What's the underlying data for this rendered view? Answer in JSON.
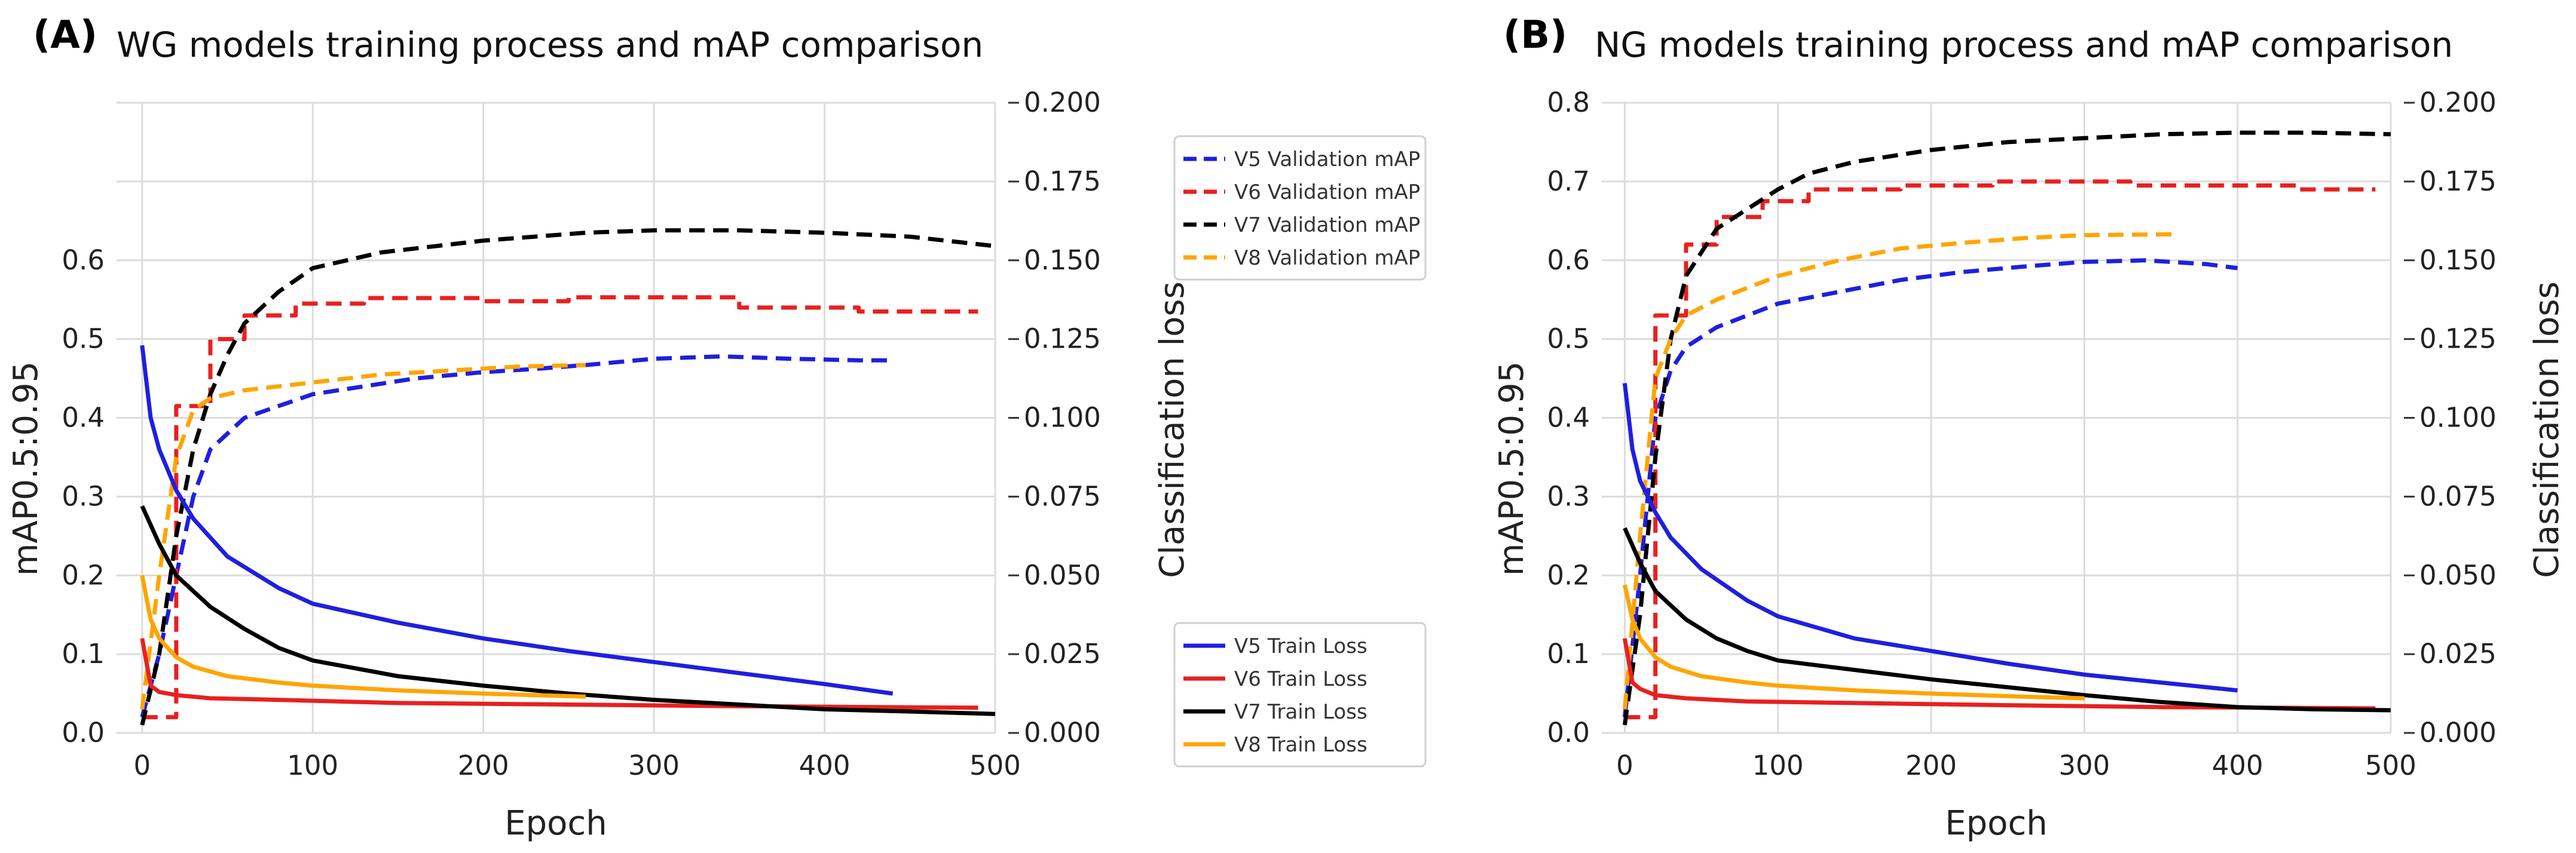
{
  "chart_data": [
    {
      "panel_label": "(A)",
      "type": "line",
      "title": "WG models training process and mAP comparison",
      "xlabel": "Epoch",
      "ylabel": "mAP0.5:0.95",
      "y2label": "Classification loss",
      "xlim": [
        -15,
        500
      ],
      "ylim": [
        0,
        0.8
      ],
      "y2lim": [
        0,
        0.2
      ],
      "grid": true,
      "xticks": [
        0,
        100,
        200,
        300,
        400,
        500
      ],
      "xtick_labels": [
        "0",
        "100",
        "200",
        "300",
        "400",
        "500"
      ],
      "yticks": [
        0,
        0.1,
        0.2,
        0.3,
        0.4,
        0.5,
        0.6
      ],
      "ytick_labels": [
        "0.0",
        "0.1",
        "0.2",
        "0.3",
        "0.4",
        "0.5",
        "0.6"
      ],
      "y2ticks": [
        0,
        0.025,
        0.05,
        0.075,
        0.1,
        0.125,
        0.15,
        0.175,
        0.2
      ],
      "y2tick_labels": [
        "0.000",
        "0.025",
        "0.050",
        "0.075",
        "0.100",
        "0.125",
        "0.150",
        "0.175",
        "0.200"
      ],
      "legend_val_position": "upper-right-outside",
      "legend_loss_position": "lower-right-outside",
      "series": [
        {
          "name": "V5 Validation mAP",
          "axis": "left",
          "style": "dashed",
          "color": "#1f1fe0",
          "x": [
            0,
            10,
            20,
            30,
            40,
            60,
            80,
            100,
            130,
            160,
            200,
            230,
            260,
            300,
            340,
            380,
            420,
            440
          ],
          "y": [
            0.02,
            0.1,
            0.2,
            0.3,
            0.36,
            0.4,
            0.415,
            0.43,
            0.44,
            0.45,
            0.458,
            0.462,
            0.467,
            0.475,
            0.478,
            0.475,
            0.473,
            0.473
          ]
        },
        {
          "name": "V6 Validation mAP",
          "axis": "left",
          "style": "step",
          "color": "#e82020",
          "x": [
            0,
            20,
            20,
            40,
            40,
            60,
            60,
            90,
            90,
            130,
            130,
            200,
            200,
            250,
            250,
            350,
            350,
            420,
            420,
            490
          ],
          "y": [
            0.02,
            0.02,
            0.415,
            0.415,
            0.5,
            0.5,
            0.53,
            0.53,
            0.545,
            0.545,
            0.552,
            0.552,
            0.548,
            0.548,
            0.553,
            0.553,
            0.54,
            0.54,
            0.535,
            0.535
          ]
        },
        {
          "name": "V7 Validation mAP",
          "axis": "left",
          "style": "dashed",
          "color": "#000000",
          "x": [
            0,
            10,
            20,
            30,
            40,
            50,
            60,
            80,
            100,
            140,
            200,
            260,
            300,
            350,
            400,
            450,
            500
          ],
          "y": [
            0.01,
            0.1,
            0.25,
            0.36,
            0.43,
            0.48,
            0.52,
            0.56,
            0.59,
            0.61,
            0.625,
            0.635,
            0.638,
            0.638,
            0.635,
            0.63,
            0.618
          ]
        },
        {
          "name": "V8 Validation mAP",
          "axis": "left",
          "style": "dashed",
          "color": "#ffa500",
          "x": [
            0,
            10,
            20,
            30,
            40,
            60,
            80,
            100,
            140,
            180,
            220,
            260
          ],
          "y": [
            0.03,
            0.2,
            0.35,
            0.41,
            0.425,
            0.435,
            0.44,
            0.445,
            0.455,
            0.46,
            0.465,
            0.467
          ]
        },
        {
          "name": "V5 Train Loss",
          "axis": "right",
          "style": "solid",
          "color": "#1f1fe0",
          "x": [
            0,
            5,
            10,
            20,
            30,
            50,
            80,
            100,
            150,
            200,
            250,
            300,
            350,
            400,
            440
          ],
          "y": [
            0.123,
            0.1,
            0.09,
            0.077,
            0.068,
            0.056,
            0.046,
            0.041,
            0.035,
            0.03,
            0.026,
            0.0225,
            0.019,
            0.0155,
            0.0125
          ]
        },
        {
          "name": "V6 Train Loss",
          "axis": "right",
          "style": "solid",
          "color": "#e82020",
          "x": [
            0,
            5,
            10,
            20,
            40,
            80,
            150,
            250,
            350,
            490
          ],
          "y": [
            0.03,
            0.015,
            0.013,
            0.012,
            0.011,
            0.0105,
            0.0095,
            0.009,
            0.0085,
            0.008
          ]
        },
        {
          "name": "V7 Train Loss",
          "axis": "right",
          "style": "solid",
          "color": "#000000",
          "x": [
            0,
            10,
            20,
            40,
            60,
            80,
            100,
            150,
            200,
            250,
            300,
            350,
            400,
            450,
            500
          ],
          "y": [
            0.072,
            0.06,
            0.05,
            0.04,
            0.033,
            0.027,
            0.023,
            0.018,
            0.015,
            0.0125,
            0.0105,
            0.009,
            0.0075,
            0.0068,
            0.006
          ]
        },
        {
          "name": "V8 Train Loss",
          "axis": "right",
          "style": "solid",
          "color": "#ffa500",
          "x": [
            0,
            5,
            10,
            20,
            30,
            50,
            80,
            100,
            150,
            200,
            260
          ],
          "y": [
            0.05,
            0.036,
            0.03,
            0.024,
            0.021,
            0.018,
            0.016,
            0.015,
            0.0135,
            0.0125,
            0.0115
          ]
        }
      ]
    },
    {
      "panel_label": "(B)",
      "type": "line",
      "title": "NG models training process and mAP comparison",
      "xlabel": "Epoch",
      "ylabel": "mAP0.5:0.95",
      "y2label": "Classification loss",
      "xlim": [
        -15,
        500
      ],
      "ylim": [
        0,
        0.8
      ],
      "y2lim": [
        0,
        0.2
      ],
      "grid": true,
      "xticks": [
        0,
        100,
        200,
        300,
        400,
        500
      ],
      "xtick_labels": [
        "0",
        "100",
        "200",
        "300",
        "400",
        "500"
      ],
      "yticks": [
        0,
        0.1,
        0.2,
        0.3,
        0.4,
        0.5,
        0.6,
        0.7,
        0.8
      ],
      "ytick_labels": [
        "0.0",
        "0.1",
        "0.2",
        "0.3",
        "0.4",
        "0.5",
        "0.6",
        "0.7",
        "0.8"
      ],
      "y2ticks": [
        0,
        0.025,
        0.05,
        0.075,
        0.1,
        0.125,
        0.15,
        0.175,
        0.2
      ],
      "y2tick_labels": [
        "0.000",
        "0.025",
        "0.050",
        "0.075",
        "0.100",
        "0.125",
        "0.150",
        "0.175",
        "0.200"
      ],
      "series": [
        {
          "name": "V5 Validation mAP",
          "axis": "left",
          "style": "dashed",
          "color": "#1f1fe0",
          "x": [
            0,
            10,
            20,
            30,
            40,
            60,
            80,
            100,
            140,
            180,
            220,
            260,
            300,
            340,
            380,
            400
          ],
          "y": [
            0.02,
            0.2,
            0.4,
            0.46,
            0.49,
            0.515,
            0.53,
            0.545,
            0.56,
            0.575,
            0.585,
            0.592,
            0.598,
            0.6,
            0.595,
            0.59
          ]
        },
        {
          "name": "V6 Validation mAP",
          "axis": "left",
          "style": "step",
          "color": "#e82020",
          "x": [
            0,
            20,
            20,
            40,
            40,
            60,
            60,
            90,
            90,
            120,
            120,
            180,
            180,
            240,
            240,
            330,
            330,
            440,
            440,
            490
          ],
          "y": [
            0.02,
            0.02,
            0.53,
            0.53,
            0.62,
            0.62,
            0.655,
            0.655,
            0.675,
            0.675,
            0.69,
            0.69,
            0.695,
            0.695,
            0.7,
            0.7,
            0.695,
            0.695,
            0.69,
            0.69
          ]
        },
        {
          "name": "V7 Validation mAP",
          "axis": "left",
          "style": "dashed",
          "color": "#000000",
          "x": [
            0,
            10,
            20,
            30,
            40,
            60,
            80,
            100,
            120,
            150,
            200,
            250,
            300,
            350,
            400,
            450,
            500
          ],
          "y": [
            0.01,
            0.15,
            0.35,
            0.5,
            0.58,
            0.64,
            0.665,
            0.69,
            0.71,
            0.725,
            0.74,
            0.75,
            0.755,
            0.76,
            0.762,
            0.762,
            0.76
          ]
        },
        {
          "name": "V8 Validation mAP",
          "axis": "left",
          "style": "dashed",
          "color": "#ffa500",
          "x": [
            0,
            10,
            20,
            30,
            40,
            60,
            80,
            100,
            140,
            180,
            220,
            260,
            300,
            360
          ],
          "y": [
            0.03,
            0.25,
            0.45,
            0.5,
            0.53,
            0.55,
            0.565,
            0.58,
            0.6,
            0.615,
            0.622,
            0.628,
            0.632,
            0.633
          ]
        },
        {
          "name": "V5 Train Loss",
          "axis": "right",
          "style": "solid",
          "color": "#1f1fe0",
          "x": [
            0,
            5,
            10,
            20,
            30,
            50,
            80,
            100,
            150,
            200,
            250,
            300,
            350,
            400
          ],
          "y": [
            0.111,
            0.09,
            0.08,
            0.07,
            0.062,
            0.052,
            0.042,
            0.037,
            0.03,
            0.026,
            0.022,
            0.0185,
            0.016,
            0.0135
          ]
        },
        {
          "name": "V6 Train Loss",
          "axis": "right",
          "style": "solid",
          "color": "#e82020",
          "x": [
            0,
            5,
            10,
            20,
            40,
            80,
            150,
            250,
            350,
            490
          ],
          "y": [
            0.03,
            0.016,
            0.014,
            0.012,
            0.011,
            0.01,
            0.0095,
            0.0088,
            0.0082,
            0.0078
          ]
        },
        {
          "name": "V7 Train Loss",
          "axis": "right",
          "style": "solid",
          "color": "#000000",
          "x": [
            0,
            10,
            20,
            40,
            60,
            80,
            100,
            150,
            200,
            250,
            300,
            350,
            400,
            450,
            500
          ],
          "y": [
            0.065,
            0.054,
            0.045,
            0.036,
            0.03,
            0.026,
            0.023,
            0.02,
            0.017,
            0.0145,
            0.012,
            0.0098,
            0.0082,
            0.0075,
            0.0072
          ]
        },
        {
          "name": "V8 Train Loss",
          "axis": "right",
          "style": "solid",
          "color": "#ffa500",
          "x": [
            0,
            5,
            10,
            20,
            30,
            50,
            80,
            100,
            150,
            200,
            260,
            300
          ],
          "y": [
            0.047,
            0.036,
            0.03,
            0.024,
            0.021,
            0.018,
            0.016,
            0.015,
            0.0135,
            0.0125,
            0.0115,
            0.011
          ]
        }
      ]
    }
  ]
}
